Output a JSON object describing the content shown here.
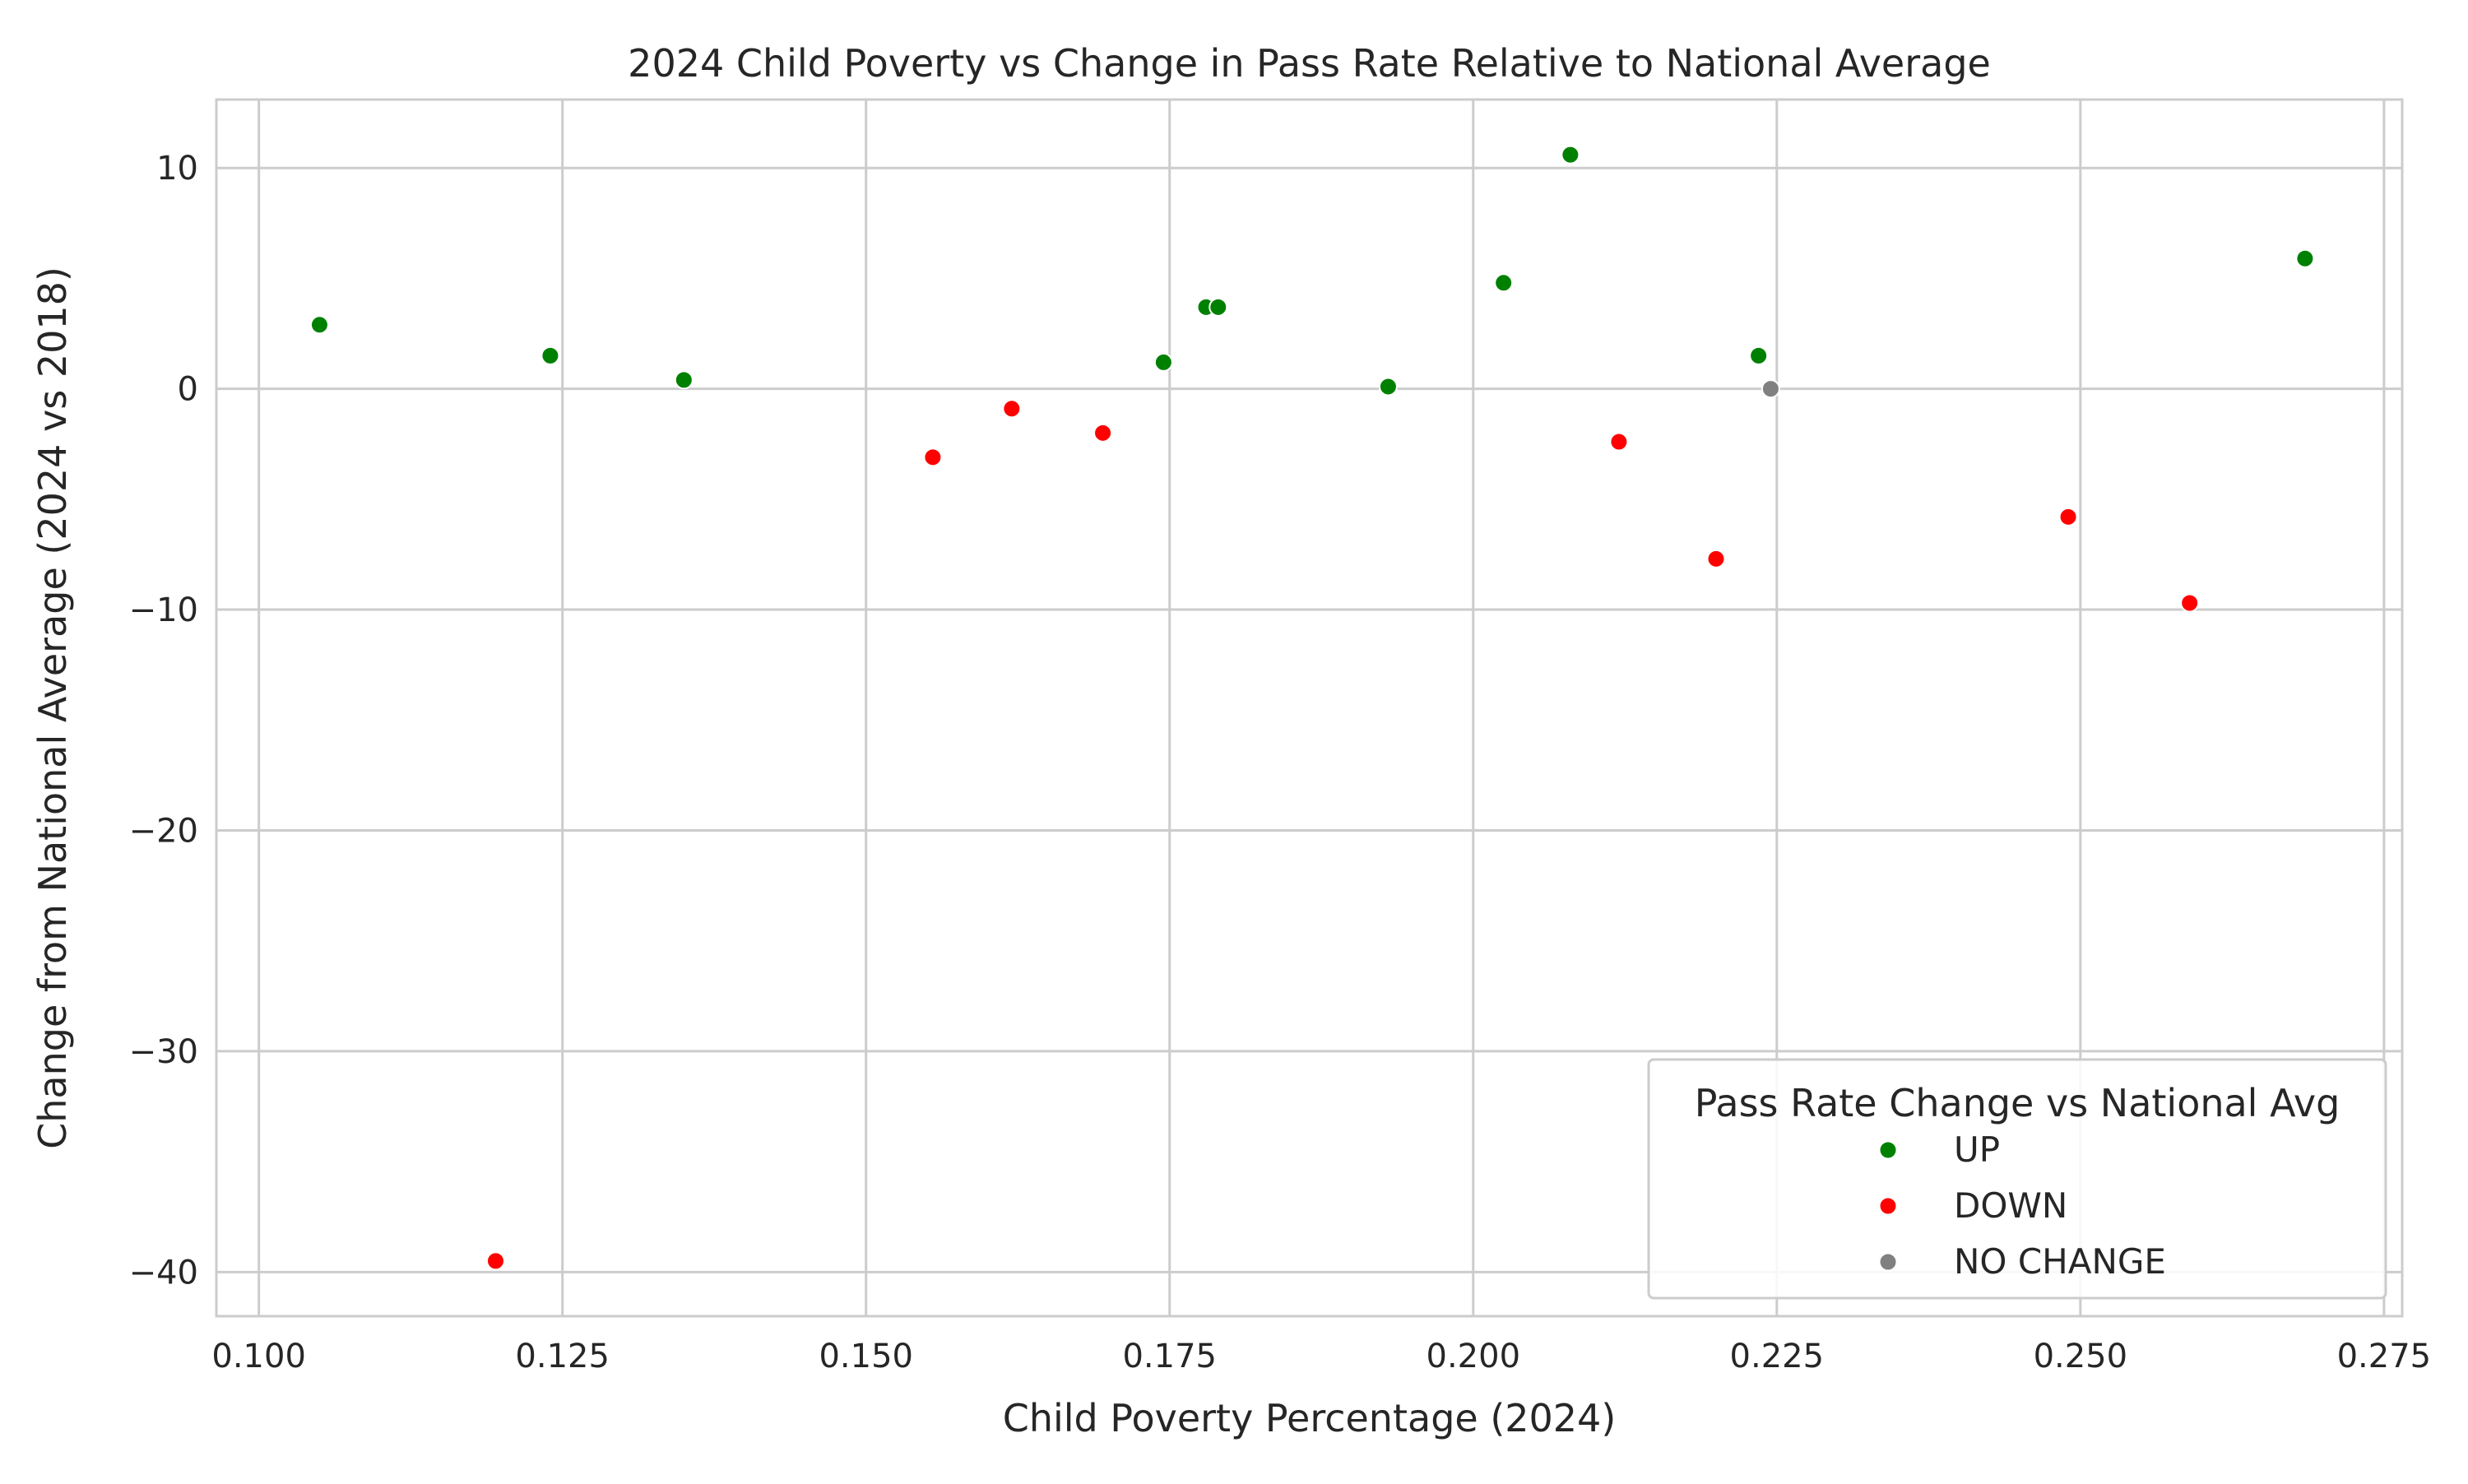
{
  "chart_data": {
    "type": "scatter",
    "title": "2024 Child Poverty vs Change in Pass Rate Relative to National Average",
    "xlabel": "Child Poverty Percentage (2024)",
    "ylabel": "Change from National Average (2024 vs 2018)",
    "xlim": [
      0.0965,
      0.2765
    ],
    "ylim": [
      -42.0,
      13.1
    ],
    "x_ticks": [
      0.1,
      0.125,
      0.15,
      0.175,
      0.2,
      0.225,
      0.25,
      0.275
    ],
    "x_tick_labels": [
      "0.100",
      "0.125",
      "0.150",
      "0.175",
      "0.200",
      "0.225",
      "0.250",
      "0.275"
    ],
    "y_ticks": [
      10,
      0,
      -10,
      -20,
      -30,
      -40
    ],
    "y_tick_labels": [
      "10",
      "0",
      "−10",
      "−20",
      "−30",
      "−40"
    ],
    "grid": true,
    "legend": {
      "title": "Pass Rate Change vs National Avg",
      "placement": "bottom-right",
      "entries": [
        {
          "key": "UP",
          "label": "UP",
          "color": "#008000"
        },
        {
          "key": "DOWN",
          "label": "DOWN",
          "color": "#ff0000"
        },
        {
          "key": "NO CHANGE",
          "label": "NO CHANGE",
          "color": "#808080"
        }
      ]
    },
    "series": [
      {
        "name": "UP",
        "color": "#008000",
        "points": [
          [
            0.105,
            2.9
          ],
          [
            0.124,
            1.5
          ],
          [
            0.135,
            0.4
          ],
          [
            0.1745,
            1.2
          ],
          [
            0.178,
            3.7
          ],
          [
            0.179,
            3.7
          ],
          [
            0.193,
            0.1
          ],
          [
            0.2025,
            4.8
          ],
          [
            0.208,
            10.6
          ],
          [
            0.2235,
            1.5
          ],
          [
            0.2685,
            5.9
          ]
        ]
      },
      {
        "name": "DOWN",
        "color": "#ff0000",
        "points": [
          [
            0.1195,
            -39.5
          ],
          [
            0.1555,
            -3.1
          ],
          [
            0.162,
            -0.9
          ],
          [
            0.1695,
            -2.0
          ],
          [
            0.212,
            -2.4
          ],
          [
            0.22,
            -7.7
          ],
          [
            0.249,
            -5.8
          ],
          [
            0.259,
            -9.7
          ]
        ]
      },
      {
        "name": "NO CHANGE",
        "color": "#808080",
        "points": [
          [
            0.2245,
            0.0
          ]
        ]
      }
    ]
  }
}
